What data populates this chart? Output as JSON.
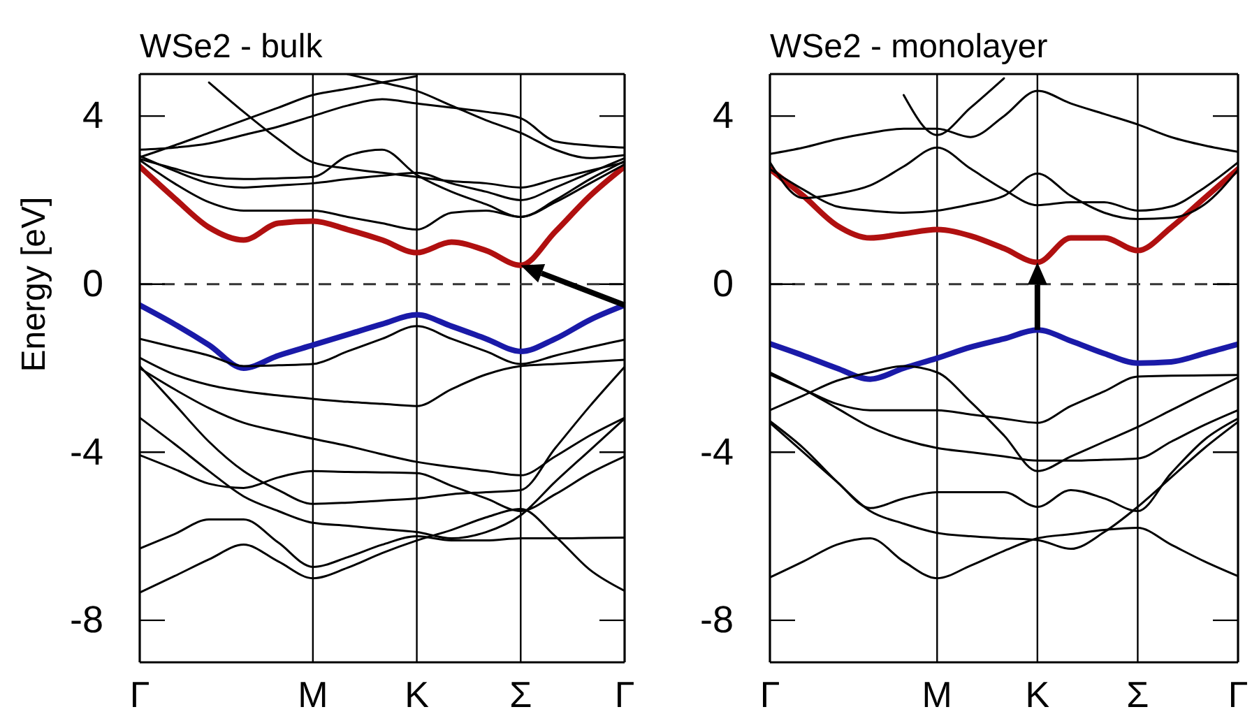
{
  "chart_data": [
    {
      "type": "line",
      "title": "WSe2 - bulk",
      "ylabel": "Energy [eV]",
      "ylim": [
        -9,
        5
      ],
      "categories": [
        "Γ",
        null,
        null,
        null,
        null,
        "M",
        null,
        null,
        "K",
        null,
        null,
        "Σ",
        null,
        null,
        "Γ"
      ],
      "yticks": [
        -8,
        -4,
        0,
        4
      ],
      "grid": "x",
      "ref_lines": [
        {
          "axis": "y",
          "value": 0,
          "line_style": "dashed",
          "color": "#333333"
        }
      ],
      "series": [
        {
          "color": "#b01010",
          "values": [
            2.8,
            2.05,
            1.35,
            1.05,
            1.45,
            1.5,
            1.3,
            1.05,
            0.75,
            1.0,
            0.8,
            0.45,
            1.25,
            2.1,
            2.8
          ]
        },
        {
          "color": "#1a1aa8",
          "values": [
            -0.5,
            -0.95,
            -1.45,
            -2.0,
            -1.7,
            -1.45,
            -1.2,
            -0.95,
            -0.73,
            -1.0,
            -1.3,
            -1.6,
            -1.3,
            -0.85,
            -0.5
          ]
        },
        {
          "color": "#000000",
          "values": [
            -7.34,
            -6.95,
            -6.55,
            -6.2,
            -6.6,
            -7.0,
            -6.75,
            -6.4,
            -6.1,
            -5.85,
            -5.55,
            -5.35,
            -6.0,
            -6.8,
            -7.3
          ]
        },
        {
          "color": "#000000",
          "values": [
            -6.29,
            -5.95,
            -5.6,
            -5.6,
            -6.15,
            -6.73,
            -6.5,
            -6.2,
            -6.0,
            -6.1,
            -6.1,
            -6.05,
            -6.05,
            -6.04,
            -6.03
          ]
        },
        {
          "color": "#000000",
          "values": [
            -3.18,
            -3.8,
            -4.45,
            -5.05,
            -5.4,
            -5.68,
            -5.75,
            -5.83,
            -5.9,
            -6.05,
            -5.9,
            -5.5,
            -4.7,
            -3.95,
            -3.2
          ]
        },
        {
          "color": "#000000",
          "values": [
            -1.95,
            -2.85,
            -3.75,
            -4.45,
            -4.9,
            -5.23,
            -5.2,
            -5.15,
            -5.1,
            -5.0,
            -4.95,
            -4.9,
            -3.9,
            -2.9,
            -1.97
          ]
        },
        {
          "color": "#000000",
          "values": [
            -2.0,
            -2.5,
            -2.95,
            -3.3,
            -3.5,
            -3.68,
            -3.85,
            -4.05,
            -4.23,
            -4.35,
            -4.45,
            -4.55,
            -4.1,
            -3.6,
            -3.18
          ]
        },
        {
          "color": "#000000",
          "values": [
            -1.75,
            -2.15,
            -2.4,
            -2.55,
            -2.65,
            -2.73,
            -2.8,
            -2.85,
            -2.9,
            -2.5,
            -2.15,
            -1.95,
            -1.9,
            -1.85,
            -1.8
          ]
        },
        {
          "color": "#000000",
          "values": [
            -4.07,
            -4.4,
            -4.75,
            -4.85,
            -4.6,
            -4.45,
            -4.47,
            -4.48,
            -4.5,
            -4.8,
            -5.1,
            -5.4,
            -5.0,
            -4.5,
            -4.1
          ]
        },
        {
          "color": "#000000",
          "values": [
            -1.3,
            -1.5,
            -1.7,
            -1.95,
            -1.93,
            -1.9,
            -1.6,
            -1.3,
            -1.0,
            -1.3,
            -1.6,
            -1.9,
            -1.7,
            -1.5,
            -1.32
          ]
        },
        {
          "color": "#000000",
          "values": [
            2.95,
            2.4,
            1.95,
            1.75,
            1.75,
            1.75,
            1.6,
            1.45,
            1.3,
            1.7,
            1.75,
            1.6,
            2.0,
            2.5,
            2.93
          ]
        },
        {
          "color": "#000000",
          "values": [
            3.05,
            2.7,
            2.4,
            2.3,
            2.35,
            2.4,
            2.5,
            2.58,
            2.65,
            2.4,
            2.2,
            2.0,
            2.3,
            2.65,
            3.0
          ]
        },
        {
          "color": "#000000",
          "values": [
            3.02,
            3.3,
            3.6,
            3.9,
            4.2,
            4.5,
            4.65,
            4.8,
            4.95,
            null,
            null,
            null,
            null,
            null,
            null
          ]
        },
        {
          "color": "#000000",
          "values": [
            null,
            null,
            4.8,
            4.1,
            3.45,
            2.9,
            2.75,
            2.65,
            2.55,
            2.45,
            2.4,
            2.3,
            2.5,
            2.7,
            2.9
          ]
        },
        {
          "color": "#000000",
          "values": [
            2.98,
            2.75,
            2.55,
            2.5,
            2.52,
            2.55,
            3.05,
            3.2,
            2.6,
            2.2,
            1.9,
            1.6,
            1.95,
            2.4,
            2.85
          ]
        },
        {
          "color": "#000000",
          "values": [
            null,
            null,
            null,
            null,
            null,
            null,
            5.0,
            4.8,
            4.6,
            4.25,
            3.9,
            3.6,
            3.2,
            3.0,
            3.07
          ]
        },
        {
          "color": "#000000",
          "values": [
            3.2,
            3.25,
            3.35,
            3.55,
            3.75,
            4.0,
            4.25,
            4.4,
            4.3,
            4.2,
            4.1,
            3.95,
            3.4,
            3.3,
            3.25
          ]
        }
      ]
    },
    {
      "type": "line",
      "title": "WSe2 - monolayer",
      "ylim": [
        -9,
        5
      ],
      "categories": [
        "Γ",
        null,
        null,
        null,
        null,
        "M",
        null,
        null,
        "K",
        null,
        null,
        "Σ",
        null,
        null,
        "Γ"
      ],
      "yticks": [
        -8,
        -4,
        0,
        4
      ],
      "grid": "x",
      "ref_lines": [
        {
          "axis": "y",
          "value": 0,
          "line_style": "dashed",
          "color": "#333333"
        }
      ],
      "series": [
        {
          "color": "#b01010",
          "values": [
            2.74,
            2.1,
            1.4,
            1.1,
            1.2,
            1.3,
            1.15,
            0.85,
            0.52,
            1.1,
            1.1,
            0.8,
            1.35,
            2.05,
            2.74
          ]
        },
        {
          "color": "#1a1aa8",
          "values": [
            -1.42,
            -1.7,
            -2.0,
            -2.26,
            -2.0,
            -1.76,
            -1.5,
            -1.3,
            -1.09,
            -1.35,
            -1.65,
            -1.88,
            -1.85,
            -1.65,
            -1.43
          ]
        },
        {
          "color": "#000000",
          "values": [
            -6.98,
            -6.6,
            -6.2,
            -6.05,
            -6.6,
            -7.0,
            -6.7,
            -6.35,
            -6.05,
            -5.95,
            -5.85,
            -5.8,
            -6.2,
            -6.6,
            -6.95
          ]
        },
        {
          "color": "#000000",
          "values": [
            -3.26,
            -3.9,
            -4.7,
            -5.4,
            -5.7,
            -5.92,
            -6.0,
            -6.05,
            -6.09,
            -6.3,
            -5.9,
            -5.3,
            -4.6,
            -3.9,
            -3.28
          ]
        },
        {
          "color": "#000000",
          "values": [
            -3.3,
            -4.0,
            -4.7,
            -5.33,
            -5.1,
            -4.95,
            -4.95,
            -4.95,
            -5.3,
            -4.9,
            -5.1,
            -5.4,
            -4.5,
            -3.7,
            -3.2
          ]
        },
        {
          "color": "#000000",
          "values": [
            -2.15,
            -2.5,
            -2.85,
            -3.0,
            -3.0,
            -3.0,
            -3.1,
            -3.2,
            -3.3,
            -2.9,
            -2.55,
            -2.2,
            -2.18,
            -2.17,
            -2.16
          ]
        },
        {
          "color": "#000000",
          "values": [
            -2.1,
            -2.5,
            -2.95,
            -3.4,
            -3.7,
            -3.9,
            -4.0,
            -4.1,
            -4.2,
            -4.2,
            -4.18,
            -4.15,
            -3.75,
            -3.35,
            -3.0
          ]
        },
        {
          "color": "#000000",
          "values": [
            -3.0,
            -2.65,
            -2.3,
            -2.1,
            -1.95,
            -2.1,
            -2.8,
            -3.6,
            -4.45,
            -4.1,
            -3.75,
            -3.4,
            -3.0,
            -2.6,
            -2.22
          ]
        },
        {
          "color": "#000000",
          "values": [
            2.74,
            2.25,
            1.85,
            1.75,
            1.7,
            1.75,
            1.9,
            2.1,
            2.63,
            2.1,
            1.7,
            1.55,
            1.58,
            1.9,
            2.72
          ]
        },
        {
          "color": "#000000",
          "values": [
            2.9,
            2.05,
            2.15,
            2.35,
            2.8,
            3.25,
            2.75,
            2.25,
            1.88,
            1.95,
            1.95,
            1.75,
            1.85,
            2.3,
            2.9
          ]
        },
        {
          "color": "#000000",
          "values": [
            3.1,
            3.25,
            3.45,
            3.6,
            3.7,
            3.7,
            3.5,
            4.0,
            4.6,
            4.3,
            4.05,
            3.8,
            3.5,
            3.3,
            3.15
          ]
        },
        {
          "color": "#000000",
          "values": [
            null,
            null,
            null,
            null,
            4.5,
            3.55,
            4.2,
            4.9,
            null,
            null,
            null,
            null,
            null,
            null,
            null
          ]
        }
      ]
    }
  ]
}
